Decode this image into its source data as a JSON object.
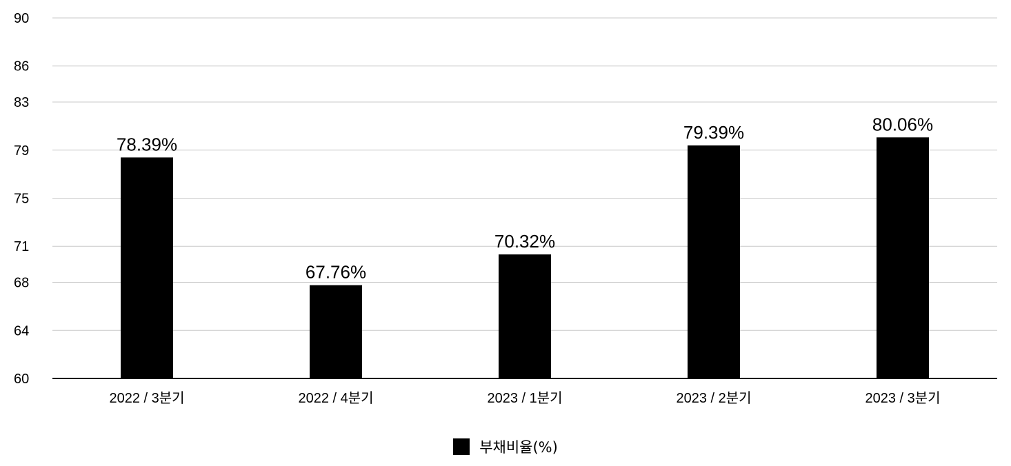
{
  "chart_data": {
    "type": "bar",
    "categories": [
      "2022 / 3분기",
      "2022 / 4분기",
      "2023 / 1분기",
      "2023 / 2분기",
      "2023 / 3분기"
    ],
    "series": [
      {
        "name": "부채비율(%)",
        "values": [
          78.39,
          67.76,
          70.32,
          79.39,
          80.06
        ],
        "value_labels": [
          "78.39%",
          "67.76%",
          "70.32%",
          "79.39%",
          "80.06%"
        ],
        "color": "#000000"
      }
    ],
    "yticks": [
      60,
      64,
      68,
      71,
      75,
      79,
      83,
      86,
      90
    ],
    "ylim": [
      60,
      90
    ],
    "grid": true,
    "legend": "bottom-center",
    "title": "",
    "xlabel": "",
    "ylabel": ""
  }
}
